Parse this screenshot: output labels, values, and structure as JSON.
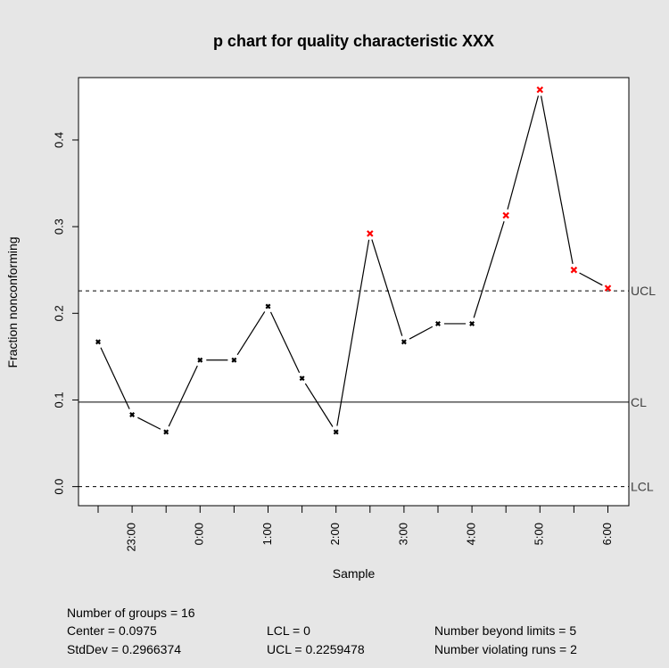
{
  "chart_data": {
    "type": "line",
    "chart_kind": "p chart",
    "title": "p chart for quality characteristic XXX",
    "xlabel": "Sample",
    "ylabel": "Fraction nonconforming",
    "x_tick_labels": [
      "23:00",
      "0:00",
      "1:00",
      "2:00",
      "3:00",
      "4:00",
      "5:00",
      "6:00"
    ],
    "y_ticks": [
      0.0,
      0.1,
      0.2,
      0.3,
      0.4
    ],
    "y_tick_labels": [
      "0.0",
      "0.1",
      "0.2",
      "0.3",
      "0.4"
    ],
    "ylim": [
      -0.022,
      0.472
    ],
    "grid": false,
    "series": [
      {
        "values": [
          0.167,
          0.083,
          0.063,
          0.146,
          0.146,
          0.208,
          0.125,
          0.063,
          0.292,
          0.167,
          0.188,
          0.188,
          0.313,
          0.458,
          0.25,
          0.229
        ],
        "out_of_control": [
          false,
          false,
          false,
          false,
          false,
          false,
          false,
          false,
          true,
          false,
          false,
          false,
          true,
          true,
          true,
          true
        ]
      }
    ],
    "control_lines": [
      {
        "label": "UCL",
        "value": 0.2259478,
        "style": "dashed"
      },
      {
        "label": "CL",
        "value": 0.0975,
        "style": "solid"
      },
      {
        "label": "LCL",
        "value": 0,
        "style": "dashed"
      }
    ],
    "colors": {
      "in_control": "#000000",
      "out_of_control": "#ff0000",
      "background": "#e6e6e6",
      "plot_area": "#ffffff"
    }
  },
  "stats": {
    "groups": "Number of groups = 16",
    "center": "Center = 0.0975",
    "stddev": "StdDev = 0.2966374",
    "lcl": "LCL = 0",
    "ucl": "UCL = 0.2259478",
    "beyond": "Number beyond limits = 5",
    "runs": "Number violating runs = 2"
  }
}
